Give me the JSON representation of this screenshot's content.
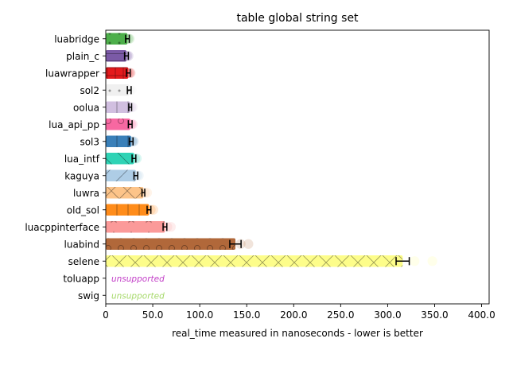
{
  "chart_data": {
    "type": "bar",
    "orientation": "horizontal",
    "title": "table global string set",
    "xlabel": "real_time measured in nanoseconds - lower is better",
    "ylabel": "",
    "xlim": [
      0,
      408
    ],
    "x_ticks": [
      0,
      50,
      100,
      150,
      200,
      250,
      300,
      350,
      400
    ],
    "x_tick_labels": [
      "0",
      "50.0",
      "100.0",
      "150.0",
      "200.0",
      "250.0",
      "300.0",
      "350.0",
      "400.0"
    ],
    "grid": false,
    "unsupported_label": "unsupported",
    "categories": [
      "luabridge",
      "plain_c",
      "luawrapper",
      "sol2",
      "oolua",
      "lua_api_pp",
      "sol3",
      "lua_intf",
      "kaguya",
      "luwra",
      "old_sol",
      "luacppinterface",
      "luabind",
      "selene",
      "toluapp",
      "swig"
    ],
    "bars": [
      {
        "name": "luabridge",
        "value": 23,
        "err": 2,
        "color": "#4daf4a",
        "hatch": "dot",
        "supported": true
      },
      {
        "name": "plain_c",
        "value": 22,
        "err": 2,
        "color": "#7b5aa6",
        "hatch": "hline",
        "supported": true
      },
      {
        "name": "luawrapper",
        "value": 24,
        "err": 2,
        "color": "#e41a1c",
        "hatch": "plus",
        "supported": true
      },
      {
        "name": "sol2",
        "value": 25,
        "err": 2,
        "color": "#f0f0f0",
        "hatch": "dot",
        "supported": true
      },
      {
        "name": "oolua",
        "value": 26,
        "err": 1.5,
        "color": "#d1bfe0",
        "hatch": "vline",
        "supported": true
      },
      {
        "name": "lua_api_pp",
        "value": 26,
        "err": 2,
        "color": "#f768a1",
        "hatch": "circle",
        "supported": true
      },
      {
        "name": "sol3",
        "value": 27,
        "err": 2,
        "color": "#3a80b9",
        "hatch": "vline",
        "supported": true
      },
      {
        "name": "lua_intf",
        "value": 30,
        "err": 2,
        "color": "#2fd3b5",
        "hatch": "bslash",
        "supported": true
      },
      {
        "name": "kaguya",
        "value": 32,
        "err": 2,
        "color": "#aecde6",
        "hatch": "slash",
        "supported": true
      },
      {
        "name": "luwra",
        "value": 40,
        "err": 1.5,
        "color": "#fdc489",
        "hatch": "cross",
        "supported": true
      },
      {
        "name": "old_sol",
        "value": 46,
        "err": 2,
        "color": "#ff8c1a",
        "hatch": "vline",
        "supported": true
      },
      {
        "name": "luacppinterface",
        "value": 63,
        "err": 2,
        "color": "#fb9a99",
        "hatch": "star",
        "supported": true
      },
      {
        "name": "luabind",
        "value": 138,
        "err": 6,
        "color": "#b1683a",
        "hatch": "circle",
        "supported": true
      },
      {
        "name": "selene",
        "value": 316,
        "err": 7,
        "color": "#fdfd8a",
        "hatch": "cross",
        "supported": true
      },
      {
        "name": "toluapp",
        "value": null,
        "err": null,
        "color": "#c340c8",
        "hatch": "",
        "supported": false
      },
      {
        "name": "swig",
        "value": null,
        "err": null,
        "color": "#a6d96a",
        "hatch": "",
        "supported": false
      }
    ]
  }
}
